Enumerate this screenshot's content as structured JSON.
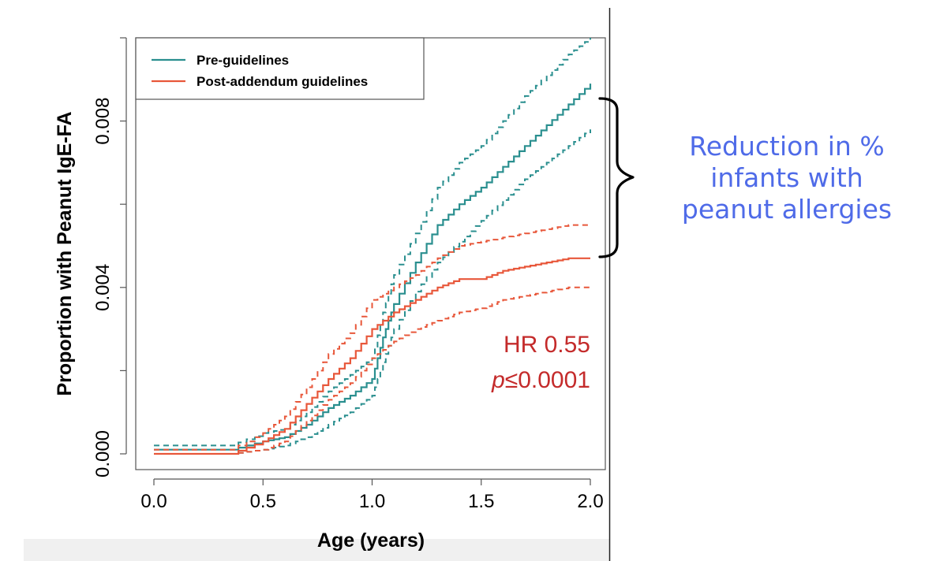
{
  "chart_data": {
    "type": "line",
    "title": "",
    "xlabel": "Age (years)",
    "ylabel": "Proportion with Peanut IgE-FA",
    "xlim": [
      0.0,
      2.0
    ],
    "ylim": [
      0.0,
      0.01
    ],
    "x_ticks": [
      "0.0",
      "0.5",
      "1.0",
      "1.5",
      "2.0"
    ],
    "y_ticks": [
      "0.000",
      "0.004",
      "0.008"
    ],
    "legend": {
      "position": "top-left",
      "entries": [
        "Pre-guidelines",
        "Post-addendum guidelines"
      ]
    },
    "series": [
      {
        "name": "Pre-guidelines",
        "color": "#2A8F8F",
        "x": [
          0.0,
          0.35,
          0.5,
          0.6,
          0.7,
          0.8,
          0.9,
          1.0,
          1.05,
          1.1,
          1.2,
          1.3,
          1.4,
          1.5,
          1.6,
          1.7,
          1.8,
          1.9,
          2.0
        ],
        "y": [
          0.0001,
          0.0001,
          0.0003,
          0.0004,
          0.0007,
          0.0011,
          0.0014,
          0.0018,
          0.0028,
          0.0036,
          0.0046,
          0.0055,
          0.006,
          0.0064,
          0.0069,
          0.0074,
          0.0079,
          0.0084,
          0.0089
        ],
        "lower": [
          0.0,
          0.0,
          0.0001,
          0.0002,
          0.0004,
          0.0007,
          0.001,
          0.0014,
          0.0022,
          0.003,
          0.0039,
          0.0046,
          0.0051,
          0.0056,
          0.0061,
          0.0066,
          0.007,
          0.0074,
          0.0078
        ],
        "upper": [
          0.0002,
          0.0002,
          0.0005,
          0.0006,
          0.001,
          0.0015,
          0.0019,
          0.0023,
          0.0034,
          0.0043,
          0.0053,
          0.0064,
          0.007,
          0.0074,
          0.008,
          0.0086,
          0.0091,
          0.0096,
          0.01
        ]
      },
      {
        "name": "Post-addendum guidelines",
        "color": "#E8573A",
        "x": [
          0.0,
          0.35,
          0.5,
          0.6,
          0.7,
          0.8,
          0.9,
          1.0,
          1.1,
          1.2,
          1.3,
          1.4,
          1.5,
          1.6,
          1.7,
          1.8,
          1.9,
          2.0
        ],
        "y": [
          0.0,
          0.0,
          0.0003,
          0.0006,
          0.0012,
          0.0018,
          0.0023,
          0.003,
          0.0034,
          0.0037,
          0.004,
          0.0042,
          0.0042,
          0.0044,
          0.0045,
          0.0046,
          0.0047,
          0.0047
        ],
        "lower": [
          0.0,
          0.0,
          0.0001,
          0.0003,
          0.0008,
          0.0013,
          0.0017,
          0.0023,
          0.0027,
          0.003,
          0.0032,
          0.0034,
          0.0035,
          0.0037,
          0.0038,
          0.0039,
          0.004,
          0.004
        ],
        "upper": [
          0.0001,
          0.0001,
          0.0005,
          0.0009,
          0.0016,
          0.0024,
          0.0029,
          0.0037,
          0.004,
          0.0043,
          0.0047,
          0.005,
          0.0051,
          0.0052,
          0.0053,
          0.0054,
          0.0055,
          0.0055
        ]
      }
    ],
    "annotations": {
      "hr_text": "HR 0.55",
      "p_symbol": "p",
      "p_text": "≤0.0001",
      "stat_color": "#C42B2B",
      "bracket_note": [
        "Reduction in %",
        "infants with",
        "peanut allergies"
      ],
      "note_color": "#4F6BE8"
    }
  }
}
